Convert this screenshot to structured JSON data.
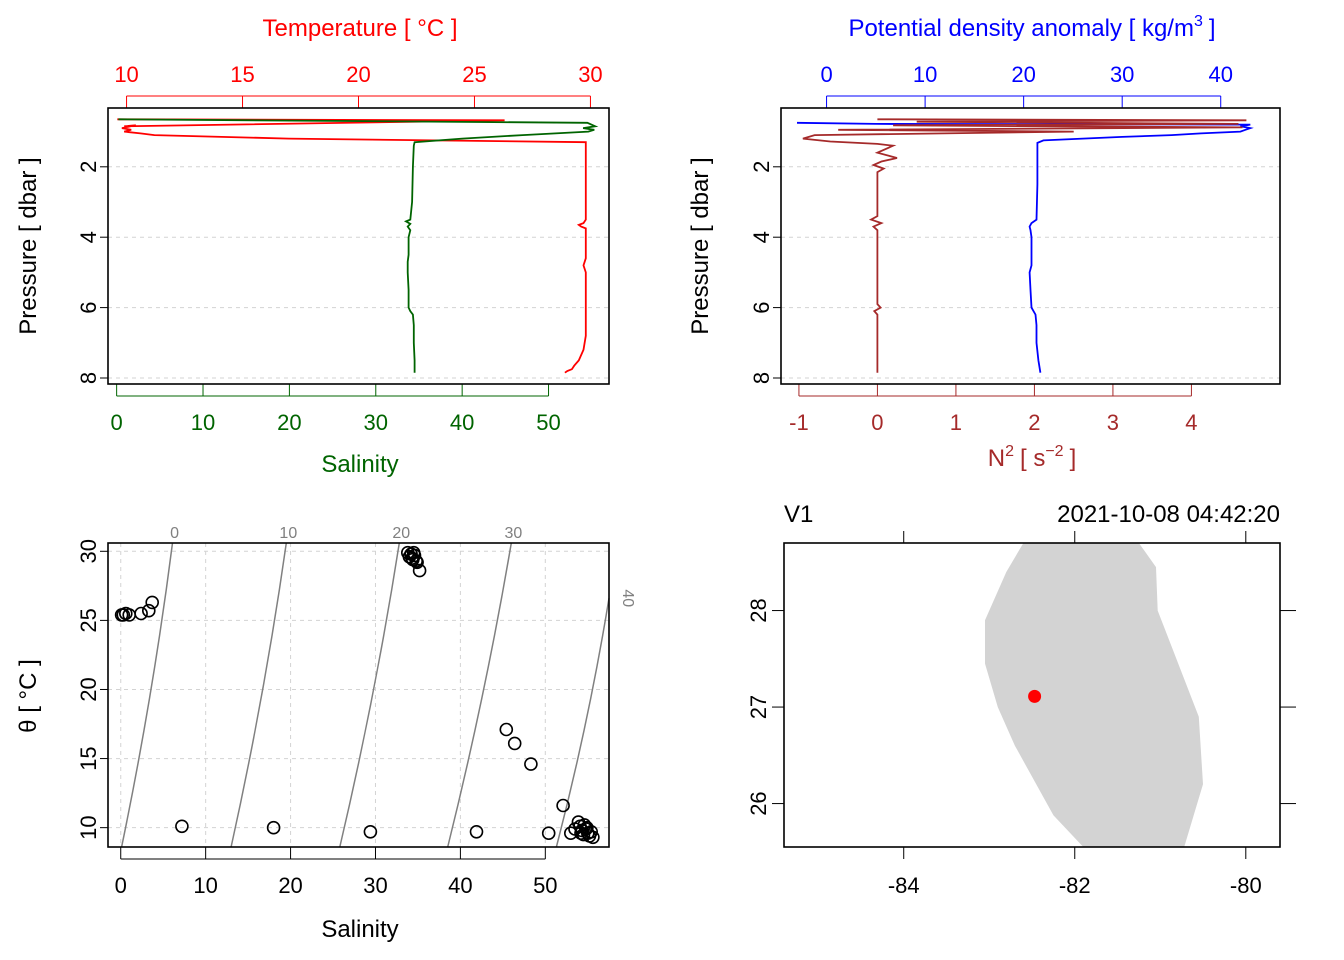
{
  "colors": {
    "temperature": "#ff0000",
    "salinity": "#006400",
    "density": "#0000ff",
    "n2": "#a52a2a",
    "axis": "#000000",
    "grid": "#d3d3d3",
    "isopycnal": "#808080",
    "land": "#d3d3d3",
    "station": "#ff0000"
  },
  "chart_data": [
    {
      "id": "ts-profile",
      "type": "line",
      "title": "",
      "ylabel": "Pressure [ dbar ]",
      "ylim": [
        8,
        0.5
      ],
      "yticks": [
        2,
        4,
        6,
        8
      ],
      "xlabel": "Salinity",
      "top_label": "Temperature [ °C ]",
      "xlim_salinity": [
        -1,
        57
      ],
      "xticks_salinity": [
        0,
        10,
        20,
        30,
        40,
        50
      ],
      "xlim_temperature": [
        9.2,
        30.8
      ],
      "xticks_temperature": [
        10,
        15,
        20,
        25,
        30
      ],
      "series": [
        {
          "name": "Temperature",
          "axis": "top",
          "points": [
            [
              9.6,
              0.65
            ],
            [
              26.3,
              0.68
            ],
            [
              24.5,
              0.7
            ],
            [
              9.9,
              0.85
            ],
            [
              10.4,
              0.82
            ],
            [
              9.8,
              0.9
            ],
            [
              10.2,
              0.95
            ],
            [
              9.9,
              1.0
            ],
            [
              10.6,
              1.05
            ],
            [
              11.2,
              1.1
            ],
            [
              17.0,
              1.2
            ],
            [
              29.8,
              1.3
            ],
            [
              29.8,
              1.45
            ],
            [
              29.8,
              2.5
            ],
            [
              29.8,
              3.5
            ],
            [
              29.7,
              3.6
            ],
            [
              29.5,
              3.65
            ],
            [
              29.6,
              3.7
            ],
            [
              29.8,
              3.75
            ],
            [
              29.8,
              4.6
            ],
            [
              29.7,
              4.8
            ],
            [
              29.8,
              5.0
            ],
            [
              29.8,
              6.0
            ],
            [
              29.8,
              6.8
            ],
            [
              29.7,
              7.2
            ],
            [
              29.5,
              7.5
            ],
            [
              29.3,
              7.65
            ],
            [
              29.2,
              7.75
            ],
            [
              29.0,
              7.8
            ],
            [
              28.9,
              7.85
            ]
          ]
        },
        {
          "name": "Salinity",
          "axis": "bottom",
          "points": [
            [
              0.2,
              0.65
            ],
            [
              54.5,
              0.75
            ],
            [
              55.4,
              0.85
            ],
            [
              54.0,
              0.9
            ],
            [
              55.3,
              0.95
            ],
            [
              54.6,
              1.0
            ],
            [
              47.0,
              1.1
            ],
            [
              40.0,
              1.2
            ],
            [
              34.5,
              1.3
            ],
            [
              34.4,
              1.4
            ],
            [
              34.3,
              2.0
            ],
            [
              34.2,
              3.0
            ],
            [
              34.0,
              3.5
            ],
            [
              33.5,
              3.55
            ],
            [
              34.0,
              3.62
            ],
            [
              33.7,
              3.7
            ],
            [
              34.0,
              3.8
            ],
            [
              33.8,
              4.0
            ],
            [
              33.8,
              4.5
            ],
            [
              33.7,
              4.7
            ],
            [
              33.7,
              5.0
            ],
            [
              33.8,
              5.5
            ],
            [
              33.8,
              6.0
            ],
            [
              34.0,
              6.1
            ],
            [
              34.3,
              6.2
            ],
            [
              34.4,
              6.5
            ],
            [
              34.4,
              7.0
            ],
            [
              34.5,
              7.5
            ],
            [
              34.5,
              7.85
            ]
          ]
        }
      ]
    },
    {
      "id": "density-n2-profile",
      "type": "line",
      "title": "",
      "ylabel": "Pressure [ dbar ]",
      "ylim": [
        8,
        0.5
      ],
      "yticks": [
        2,
        4,
        6,
        8
      ],
      "xlabel_main": "N",
      "xlabel_sup": "2",
      "xlabel_unit": "[ s",
      "xlabel_unit_sup": "−2",
      "xlabel_close": "]",
      "top_label_main": "Potential density anomaly [ kg/m",
      "top_label_sup": "3",
      "top_label_close": "]",
      "xlim_n2": [
        -1.05,
        4.95
      ],
      "xticks_n2": [
        -1,
        0,
        1,
        2,
        3,
        4
      ],
      "xlim_density": [
        -3,
        45
      ],
      "xticks_density": [
        0,
        10,
        20,
        30,
        40
      ],
      "series": [
        {
          "name": "Potential density anomaly",
          "axis": "top",
          "points": [
            [
              -3,
              0.75
            ],
            [
              5,
              0.78
            ],
            [
              43,
              0.8
            ],
            [
              42,
              0.85
            ],
            [
              43,
              0.9
            ],
            [
              42.5,
              0.95
            ],
            [
              42,
              1.0
            ],
            [
              38,
              1.05
            ],
            [
              35,
              1.1
            ],
            [
              30,
              1.15
            ],
            [
              22,
              1.25
            ],
            [
              21.4,
              1.32
            ],
            [
              21.4,
              1.5
            ],
            [
              21.4,
              2.5
            ],
            [
              21.3,
              3.5
            ],
            [
              20.8,
              3.6
            ],
            [
              20.6,
              3.7
            ],
            [
              20.7,
              3.8
            ],
            [
              20.8,
              4.0
            ],
            [
              20.8,
              4.8
            ],
            [
              20.6,
              5.0
            ],
            [
              20.7,
              5.5
            ],
            [
              20.8,
              6.0
            ],
            [
              21.2,
              6.2
            ],
            [
              21.3,
              6.5
            ],
            [
              21.3,
              7.0
            ],
            [
              21.5,
              7.5
            ],
            [
              21.7,
              7.85
            ]
          ]
        },
        {
          "name": "N2",
          "axis": "bottom",
          "points": [
            [
              0.0,
              0.65
            ],
            [
              4.7,
              0.68
            ],
            [
              0.5,
              0.72
            ],
            [
              4.6,
              0.78
            ],
            [
              0.2,
              0.82
            ],
            [
              4.65,
              0.88
            ],
            [
              -0.5,
              0.95
            ],
            [
              2.5,
              1.0
            ],
            [
              -0.8,
              1.1
            ],
            [
              -0.95,
              1.2
            ],
            [
              -0.6,
              1.28
            ],
            [
              0.0,
              1.35
            ],
            [
              0.2,
              1.4
            ],
            [
              0.0,
              1.6
            ],
            [
              0.25,
              1.75
            ],
            [
              0.05,
              1.85
            ],
            [
              -0.05,
              1.95
            ],
            [
              0.08,
              2.05
            ],
            [
              0.0,
              2.15
            ],
            [
              0.0,
              3.4
            ],
            [
              -0.08,
              3.5
            ],
            [
              0.05,
              3.6
            ],
            [
              -0.05,
              3.7
            ],
            [
              0.0,
              3.8
            ],
            [
              0.0,
              5.9
            ],
            [
              0.04,
              6.0
            ],
            [
              -0.04,
              6.1
            ],
            [
              0.0,
              6.2
            ],
            [
              0.0,
              7.85
            ]
          ]
        }
      ]
    },
    {
      "id": "ts-diagram",
      "type": "scatter",
      "title": "",
      "xlabel": "Salinity",
      "ylabel": "θ [ °C ]",
      "xlim": [
        -1.5,
        57.5
      ],
      "xticks": [
        0,
        10,
        20,
        30,
        40,
        50
      ],
      "ylim": [
        8.6,
        30.6
      ],
      "yticks": [
        10,
        15,
        20,
        25,
        30
      ],
      "isopycnal_labels": [
        "0",
        "10",
        "20",
        "30",
        "40"
      ],
      "isopycnals": [
        {
          "label": "0",
          "points": [
            [
              0.1,
              8.6
            ],
            [
              6.1,
              30.6
            ]
          ]
        },
        {
          "label": "10",
          "points": [
            [
              13.0,
              8.6
            ],
            [
              19.5,
              30.6
            ]
          ]
        },
        {
          "label": "20",
          "points": [
            [
              25.8,
              8.6
            ],
            [
              32.8,
              30.6
            ]
          ]
        },
        {
          "label": "30",
          "points": [
            [
              38.5,
              8.6
            ],
            [
              46.0,
              30.6
            ]
          ]
        },
        {
          "label": "40",
          "points": [
            [
              51.3,
              8.6
            ],
            [
              57.5,
              26.6
            ]
          ]
        }
      ],
      "points": [
        [
          0.1,
          25.4
        ],
        [
          0.3,
          25.4
        ],
        [
          0.6,
          25.5
        ],
        [
          1.0,
          25.4
        ],
        [
          2.4,
          25.5
        ],
        [
          3.3,
          25.7
        ],
        [
          3.7,
          26.3
        ],
        [
          33.8,
          29.9
        ],
        [
          34.0,
          29.6
        ],
        [
          34.2,
          29.8
        ],
        [
          34.4,
          29.4
        ],
        [
          34.5,
          29.9
        ],
        [
          34.8,
          29.3
        ],
        [
          34.3,
          29.5
        ],
        [
          34.6,
          29.7
        ],
        [
          34.9,
          29.2
        ],
        [
          35.2,
          28.6
        ],
        [
          7.2,
          10.1
        ],
        [
          18.0,
          10.0
        ],
        [
          29.4,
          9.7
        ],
        [
          41.9,
          9.7
        ],
        [
          45.4,
          17.1
        ],
        [
          46.4,
          16.1
        ],
        [
          48.3,
          14.6
        ],
        [
          50.4,
          9.6
        ],
        [
          52.1,
          11.6
        ],
        [
          53.0,
          9.6
        ],
        [
          53.5,
          9.9
        ],
        [
          53.9,
          10.4
        ],
        [
          54.1,
          10.1
        ],
        [
          54.3,
          9.8
        ],
        [
          54.5,
          9.5
        ],
        [
          54.6,
          10.2
        ],
        [
          54.8,
          9.9
        ],
        [
          55.0,
          9.6
        ],
        [
          55.2,
          9.4
        ],
        [
          55.4,
          9.7
        ],
        [
          55.6,
          9.3
        ],
        [
          54.9,
          10.0
        ],
        [
          54.2,
          9.6
        ]
      ]
    },
    {
      "id": "station-map",
      "type": "map",
      "station_name": "V1",
      "time": "2021-10-08 04:42:20",
      "xlim": [
        -85.4,
        -79.6
      ],
      "ylim": [
        25.55,
        28.7
      ],
      "xticks": [
        "-84",
        "-82",
        "-80"
      ],
      "xtick_values": [
        -84,
        -82,
        -80
      ],
      "yticks": [
        "26",
        "27",
        "28"
      ],
      "ytick_values": [
        26,
        27,
        28
      ],
      "station": {
        "lon": -82.47,
        "lat": 27.11
      },
      "land_polygon": [
        [
          -82.6,
          28.7
        ],
        [
          -81.25,
          28.7
        ],
        [
          -81.05,
          28.45
        ],
        [
          -81.03,
          28.0
        ],
        [
          -80.55,
          26.9
        ],
        [
          -80.5,
          26.2
        ],
        [
          -80.72,
          25.55
        ],
        [
          -81.9,
          25.55
        ],
        [
          -82.25,
          25.88
        ],
        [
          -82.7,
          26.6
        ],
        [
          -82.9,
          27.0
        ],
        [
          -83.05,
          27.45
        ],
        [
          -83.05,
          27.9
        ],
        [
          -82.8,
          28.4
        ]
      ]
    }
  ]
}
